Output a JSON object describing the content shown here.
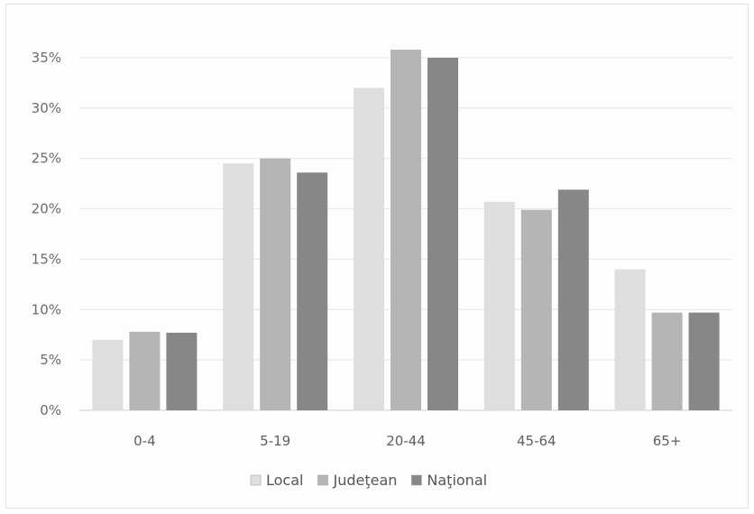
{
  "chart_data": {
    "type": "bar",
    "categories": [
      "0-4",
      "5-19",
      "20-44",
      "45-64",
      "65+"
    ],
    "series": [
      {
        "name": "Local",
        "values": [
          7.0,
          24.5,
          32.0,
          20.7,
          14.0
        ],
        "color": "#dedede"
      },
      {
        "name": "Judeţean",
        "values": [
          7.8,
          25.0,
          35.8,
          19.9,
          9.7
        ],
        "color": "#b5b5b5"
      },
      {
        "name": "Naţional",
        "values": [
          7.7,
          23.6,
          35.0,
          21.9,
          9.7
        ],
        "color": "#878787"
      }
    ],
    "y_ticks": [
      "0%",
      "5%",
      "10%",
      "15%",
      "20%",
      "25%",
      "30%",
      "35%"
    ],
    "ylim": [
      0,
      35
    ],
    "grid": true,
    "legend_position": "bottom"
  }
}
